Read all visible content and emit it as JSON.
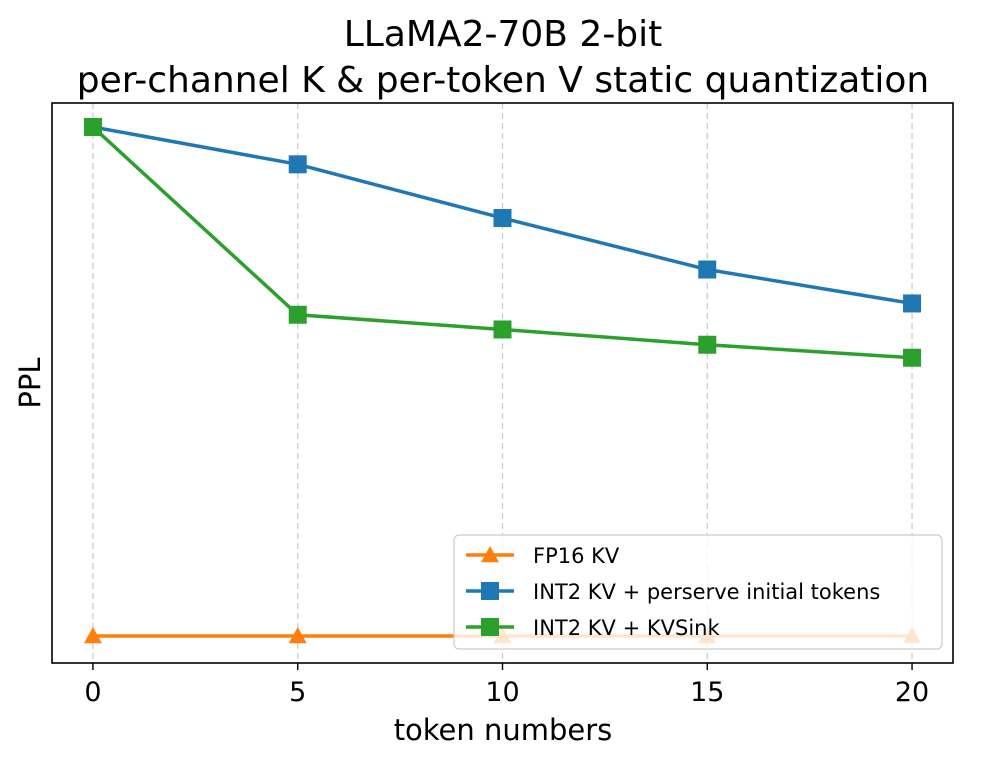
{
  "chart_data": {
    "type": "line",
    "title_lines": [
      "LLaMA2-70B 2-bit",
      "per-channel K & per-token V static quantization"
    ],
    "xlabel": "token numbers",
    "ylabel": "PPL",
    "x": [
      0,
      5,
      10,
      15,
      20
    ],
    "x_ticks": [
      "0",
      "5",
      "10",
      "15",
      "20"
    ],
    "xlim": [
      -1,
      21
    ],
    "ylim": [
      0,
      100
    ],
    "y_tick_labels_shown": false,
    "grid": "vertical dashed",
    "legend_position": "lower-right",
    "series": [
      {
        "name": "FP16 KV",
        "color": "#ff7f0e",
        "marker": "triangle",
        "values": [
          4,
          4,
          4,
          4,
          4
        ]
      },
      {
        "name": "INT2 KV + perserve initial tokens",
        "color": "#1f77b4",
        "marker": "square",
        "values": [
          94,
          87.4,
          77.9,
          68.8,
          62.8
        ]
      },
      {
        "name": "INT2 KV + KVSink",
        "color": "#2ca02c",
        "marker": "square",
        "values": [
          94,
          60.8,
          58.2,
          55.5,
          53.2
        ]
      }
    ]
  }
}
